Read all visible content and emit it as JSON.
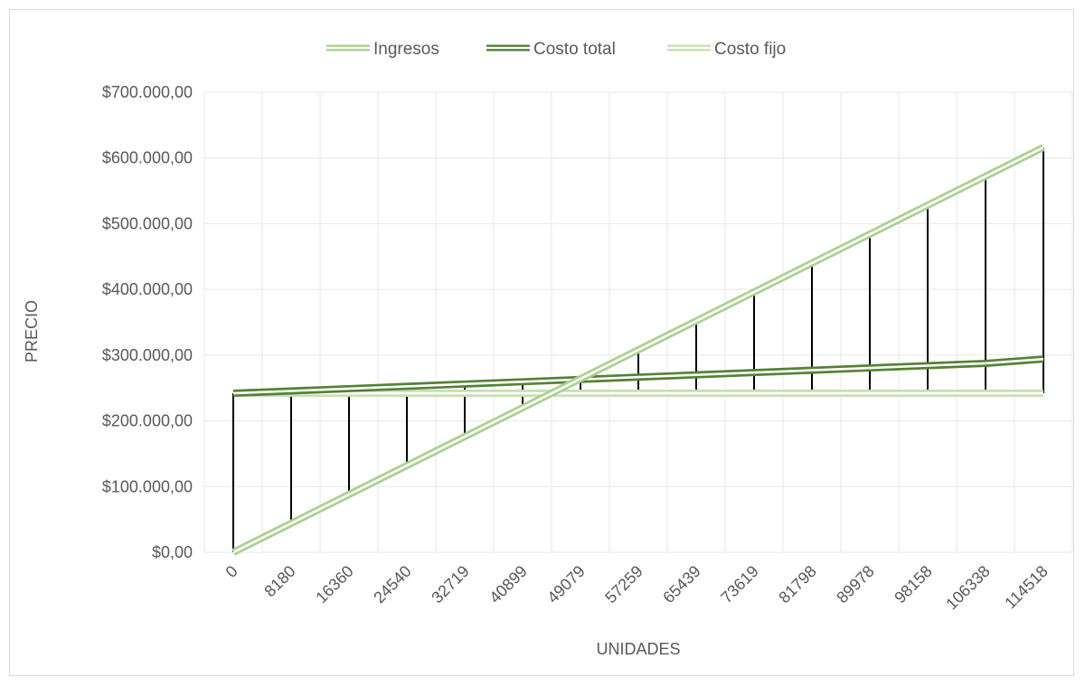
{
  "chart_data": {
    "type": "line",
    "title": "",
    "xlabel": "UNIDADES",
    "ylabel": "PRECIO",
    "categories": [
      "0",
      "8180",
      "16360",
      "24540",
      "32719",
      "40899",
      "49079",
      "57259",
      "65439",
      "73619",
      "81798",
      "89978",
      "98158",
      "106338",
      "114518"
    ],
    "x": [
      0,
      8180,
      16360,
      24540,
      32719,
      40899,
      49079,
      57259,
      65439,
      73619,
      81798,
      89978,
      98158,
      106338,
      114518
    ],
    "ylim": [
      0,
      700000
    ],
    "yticks": [
      0,
      100000,
      200000,
      300000,
      400000,
      500000,
      600000,
      700000
    ],
    "ytick_labels": [
      "$0,00",
      "$100.000,00",
      "$200.000,00",
      "$300.000,00",
      "$400.000,00",
      "$500.000,00",
      "$600.000,00",
      "$700.000,00"
    ],
    "grid": true,
    "legend_position": "top",
    "series": [
      {
        "name": "Ingresos",
        "color": "#a9d18e",
        "style": "double-line",
        "values": [
          0,
          44000,
          88000,
          132000,
          176000,
          220000,
          264000,
          308000,
          352000,
          396000,
          440000,
          484000,
          528000,
          572000,
          616000
        ]
      },
      {
        "name": "Costo total",
        "color": "#548235",
        "style": "double-line",
        "values": [
          242000,
          245500,
          249000,
          252500,
          256000,
          259500,
          263000,
          266500,
          270000,
          273500,
          277000,
          280500,
          284000,
          287500,
          294000
        ]
      },
      {
        "name": "Costo fijo",
        "color": "#c5e0b4",
        "style": "double-line",
        "values": [
          242000,
          242000,
          242000,
          242000,
          242000,
          242000,
          242000,
          242000,
          242000,
          242000,
          242000,
          242000,
          242000,
          242000,
          242000
        ]
      }
    ],
    "drop_lines": {
      "color": "#000000",
      "description": "vertical high-low lines at each category between series"
    }
  }
}
